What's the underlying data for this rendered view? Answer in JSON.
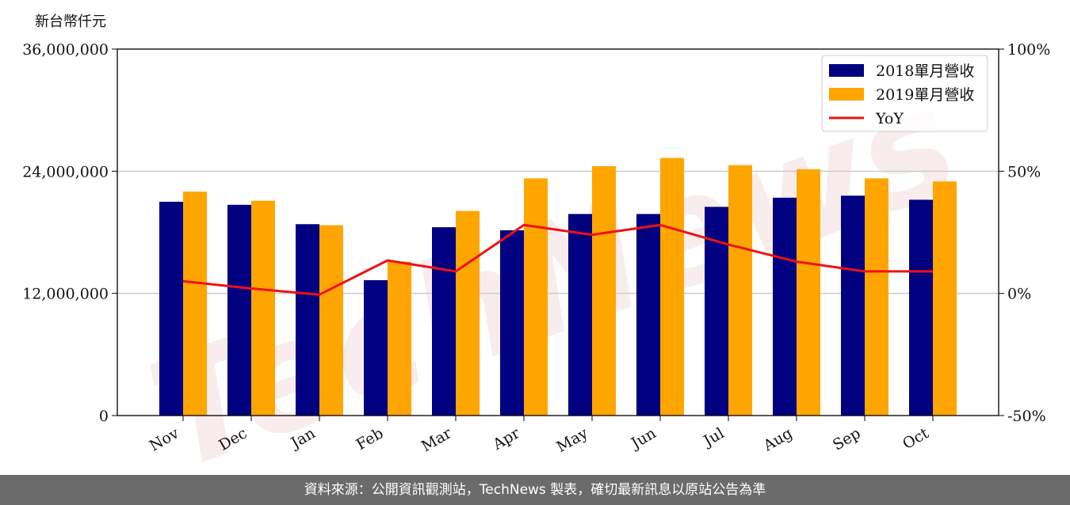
{
  "unit_label": "新台幣仟元",
  "watermark_text": "TechNews",
  "footer_text": "資料來源：公開資訊觀測站，TechNews 製表，確切最新訊息以原站公告為準",
  "colors": {
    "series_2018": "#000080",
    "series_2019": "#FFA500",
    "yoy_line": "#EE1111",
    "grid": "#CCCCCC",
    "footer_bg": "#6B6B6B"
  },
  "chart_data": {
    "type": "bar",
    "categories": [
      "Nov",
      "Dec",
      "Jan",
      "Feb",
      "Mar",
      "Apr",
      "May",
      "Jun",
      "Jul",
      "Aug",
      "Sep",
      "Oct"
    ],
    "series": [
      {
        "name": "2018單月營收",
        "values": [
          21000000,
          20700000,
          18800000,
          13300000,
          18500000,
          18200000,
          19800000,
          19800000,
          20500000,
          21400000,
          21600000,
          21200000
        ]
      },
      {
        "name": "2019單月營收",
        "values": [
          22000000,
          21100000,
          18700000,
          15100000,
          20100000,
          23300000,
          24500000,
          25300000,
          24600000,
          24200000,
          23300000,
          23000000
        ]
      }
    ],
    "line_series": {
      "name": "YoY",
      "axis": "right",
      "values": [
        5,
        2,
        -0.5,
        13.5,
        9,
        28,
        24,
        28,
        20,
        13,
        9,
        9
      ]
    },
    "ylim": [
      0,
      36000000
    ],
    "yticks": [
      "0",
      "12,000,000",
      "24,000,000",
      "36,000,000"
    ],
    "y2lim": [
      -50,
      100
    ],
    "y2ticks": [
      "-50%",
      "0%",
      "50%",
      "100%"
    ],
    "grid": "horizontal",
    "legend": "top-right"
  }
}
